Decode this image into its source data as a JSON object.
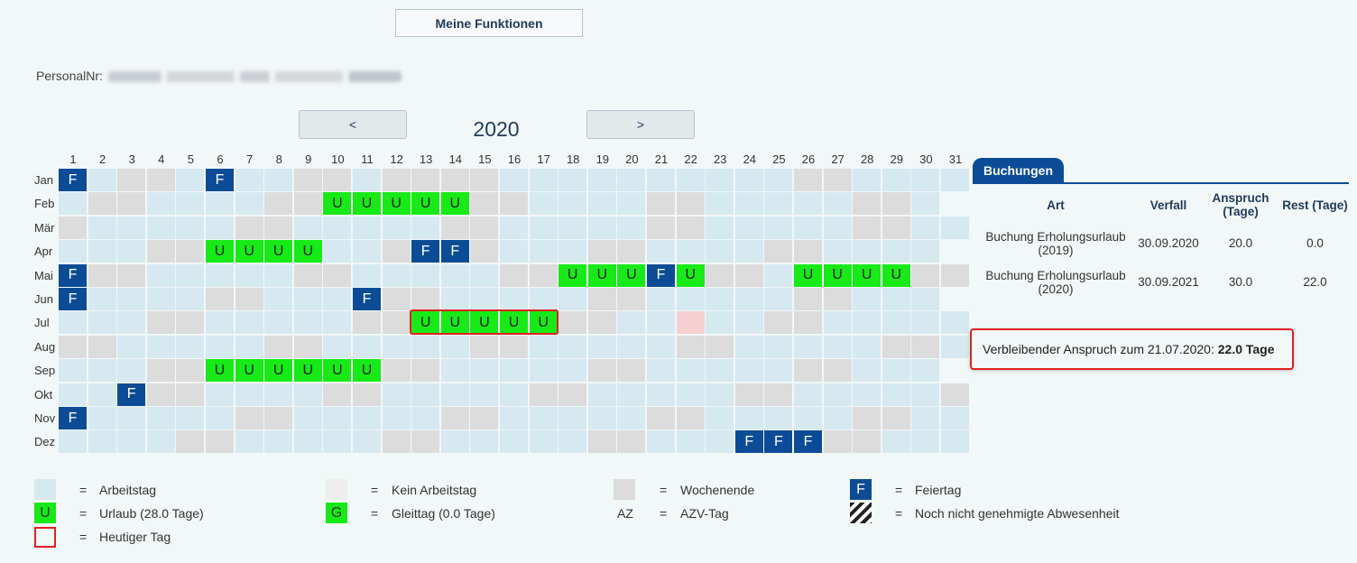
{
  "header": {
    "functions_button": "Meine Funktionen",
    "personal_label": "PersonalNr:"
  },
  "nav": {
    "prev": "<",
    "next": ">",
    "year": "2020"
  },
  "calendar": {
    "day_numbers": [
      "1",
      "2",
      "3",
      "4",
      "5",
      "6",
      "7",
      "8",
      "9",
      "10",
      "11",
      "12",
      "13",
      "14",
      "15",
      "16",
      "17",
      "18",
      "19",
      "20",
      "21",
      "22",
      "23",
      "24",
      "25",
      "26",
      "27",
      "28",
      "29",
      "30",
      "31"
    ],
    "months": [
      {
        "name": "Jan",
        "days": "FweewFwweeweeeewwwwwwwwwweewwwww",
        "holidays": {
          "1": "F",
          "6": "F"
        }
      },
      {
        "name": "Feb",
        "days": "weewwwweeuuuuueewwwweewwwwweewi",
        "holidays": {}
      },
      {
        "name": "Mär",
        "days": "ewwwwweewwwwweewwwwweewwwwweeww",
        "holidays": {}
      },
      {
        "name": "Apr",
        "days": "wwweeuuuufweFFewwweewwwweewwwwi",
        "holidays": {}
      },
      {
        "name": "Mai",
        "days": "FeewwwwweewwwwweeuuuFueewuuuueeF",
        "holidays": {}
      },
      {
        "name": "Jun",
        "days": "FwwwweewwwFeewwwwweewwwwweewwwi",
        "holidays": {}
      },
      {
        "name": "Jul",
        "days": "wwweewwwwweeuuuuueewwTwweewwwwwee",
        "holidays": {}
      },
      {
        "name": "Aug",
        "days": "eewwwwweewwwwweewwwwweewwwwweew",
        "holidays": {}
      },
      {
        "name": "Sep",
        "days": "wwweeuuuuuueewwwwweewwwwweewwwi",
        "holidays": {}
      },
      {
        "name": "Okt",
        "days": "wwFeewwwweewwwwweewwwwweewwwwwe",
        "holidays": {}
      },
      {
        "name": "Nov",
        "days": "FwwwwweewwwwweewwwwweewwwwweewwI",
        "holidays": {}
      },
      {
        "name": "Dez",
        "days": "wwwweewwwwweewwwwweewwwFFFeewwwF",
        "holidays": {}
      }
    ],
    "letters": {
      "u": "U",
      "F": "F"
    }
  },
  "bookings": {
    "tab": "Buchungen",
    "headers": {
      "art": "Art",
      "verfall": "Verfall",
      "anspruch": "Anspruch (Tage)",
      "rest": "Rest (Tage)"
    },
    "rows": [
      {
        "art": "Buchung Erholungsurlaub (2019)",
        "verfall": "30.09.2020",
        "anspruch": "20.0",
        "rest": "0.0"
      },
      {
        "art": "Buchung Erholungsurlaub (2020)",
        "verfall": "30.09.2021",
        "anspruch": "30.0",
        "rest": "22.0"
      }
    ],
    "remaining_label": "Verbleibender Anspruch zum 21.07.2020:",
    "remaining_value": "22.0 Tage"
  },
  "legend": {
    "eq": "=",
    "arbeitstag": "Arbeitstag",
    "kein_arbeitstag": "Kein Arbeitstag",
    "wochenende": "Wochenende",
    "feiertag_symbol": "F",
    "feiertag": "Feiertag",
    "urlaub_symbol": "U",
    "urlaub": "Urlaub (28.0 Tage)",
    "gleittag_symbol": "G",
    "gleittag": "Gleittag (0.0 Tage)",
    "azv_symbol": "AZ",
    "azv": "AZV-Tag",
    "pending": "Noch nicht genehmigte Abwesenheit",
    "heute": "Heutiger Tag"
  },
  "colors": {
    "work": "#d6e9f1",
    "weekend": "#dcdcdc",
    "nonwork": "#eeeeee",
    "vacation": "#17ea17",
    "holiday": "#0c4c96",
    "today": "#e02020"
  }
}
